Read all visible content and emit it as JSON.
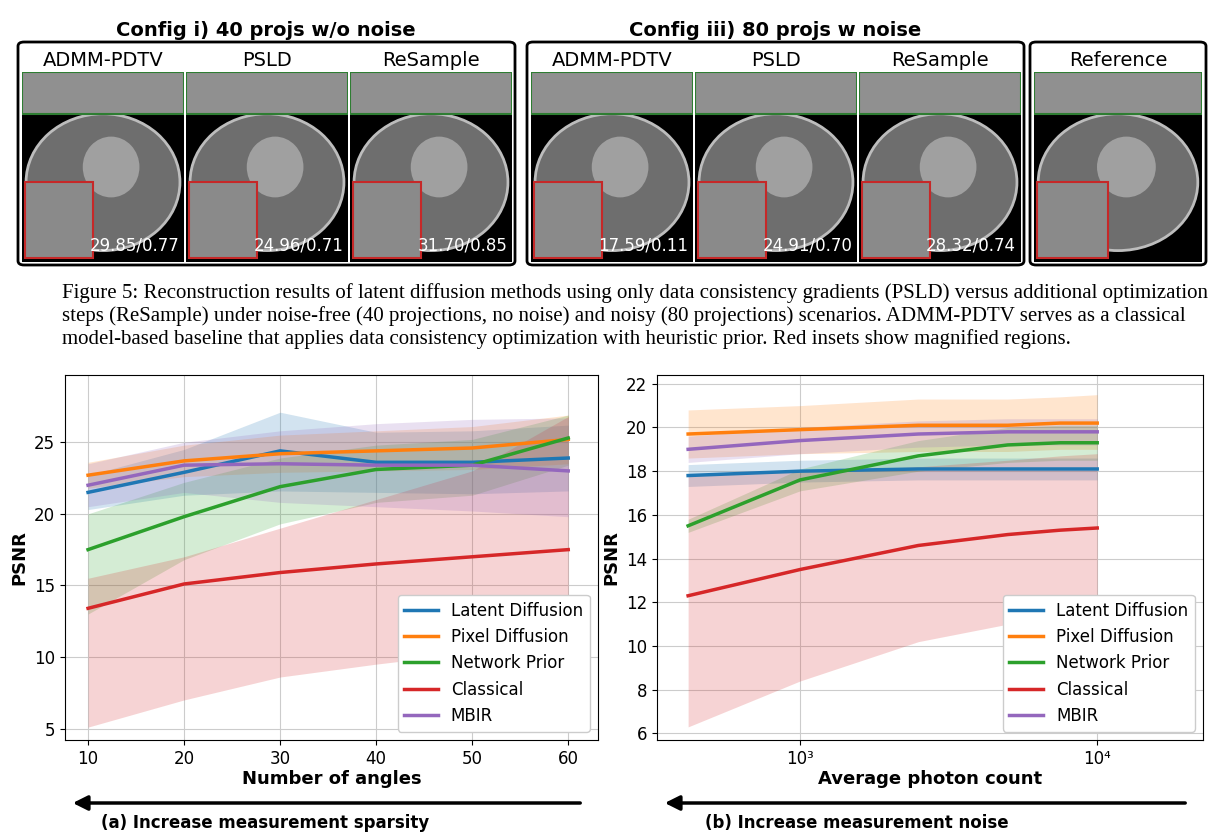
{
  "figure": {
    "groups": [
      {
        "title": "Config i) 40 projs w/o noise",
        "panels": [
          {
            "label": "ADMM-PDTV",
            "metrics": "29.85/0.77"
          },
          {
            "label": "PSLD",
            "metrics": "24.96/0.71"
          },
          {
            "label": "ReSample",
            "metrics": "31.70/0.85"
          }
        ]
      },
      {
        "title": "Config iii) 80 projs w noise",
        "panels": [
          {
            "label": "ADMM-PDTV",
            "metrics": "17.59/0.11"
          },
          {
            "label": "PSLD",
            "metrics": "24.91/0.70"
          },
          {
            "label": "ReSample",
            "metrics": "28.32/0.74"
          }
        ]
      }
    ],
    "reference": "Reference",
    "caption": "Figure 5: Reconstruction results of latent diffusion methods using only data consistency gradients (PSLD) versus additional optimization steps (ReSample) under noise-free (40 projections, no noise) and noisy (80 projections) scenarios. ADMM-PDTV serves as a classical model-based baseline that applies data consistency optimization with heuristic prior. Red insets show magnified regions."
  },
  "chart_data": [
    {
      "type": "line",
      "xlabel": "Number of angles",
      "ylabel": "PSNR",
      "footer": "(a) Increase measurement sparsity",
      "x": [
        10,
        20,
        30,
        40,
        50,
        60
      ],
      "xlim": [
        7.6,
        63.1
      ],
      "ylim": [
        4.2,
        29.7
      ],
      "xticks": [
        10,
        20,
        30,
        40,
        50,
        60
      ],
      "yticks": [
        5,
        10,
        15,
        20,
        25
      ],
      "grid": true,
      "legend": "lower right",
      "series": [
        {
          "name": "Latent Diffusion",
          "color": "#1f77b4",
          "values": [
            21.5,
            22.9,
            24.4,
            23.6,
            23.6,
            23.9
          ],
          "lower": [
            20.3,
            21.3,
            21.6,
            21.5,
            21.4,
            21.6
          ],
          "upper": [
            22.7,
            24.5,
            27.1,
            25.7,
            25.8,
            26.2
          ]
        },
        {
          "name": "Pixel Diffusion",
          "color": "#ff7f0e",
          "values": [
            22.7,
            23.7,
            24.2,
            24.4,
            24.6,
            25.2
          ],
          "lower": [
            21.8,
            22.6,
            22.9,
            23.0,
            23.1,
            23.5
          ],
          "upper": [
            23.6,
            24.8,
            25.5,
            25.8,
            26.1,
            26.9
          ]
        },
        {
          "name": "Network Prior",
          "color": "#2ca02c",
          "values": [
            17.5,
            19.8,
            21.9,
            23.1,
            23.4,
            25.3
          ],
          "lower": [
            13.0,
            16.8,
            19.3,
            20.8,
            21.3,
            23.4
          ],
          "upper": [
            20.0,
            22.2,
            23.9,
            24.8,
            25.2,
            26.9
          ]
        },
        {
          "name": "Classical",
          "color": "#d62728",
          "values": [
            13.4,
            15.1,
            15.9,
            16.5,
            17.0,
            17.5
          ],
          "lower": [
            5.1,
            7.0,
            8.6,
            9.5,
            10.3,
            11.0
          ],
          "upper": [
            15.5,
            17.0,
            19.0,
            21.0,
            23.0,
            26.8
          ]
        },
        {
          "name": "MBIR",
          "color": "#9467bd",
          "values": [
            22.0,
            23.4,
            23.5,
            23.4,
            23.4,
            23.0
          ],
          "lower": [
            20.5,
            21.5,
            20.8,
            20.5,
            20.2,
            19.8
          ],
          "upper": [
            23.5,
            25.0,
            25.8,
            26.3,
            26.6,
            26.7
          ]
        }
      ]
    },
    {
      "type": "line",
      "xlabel": "Average photon count",
      "ylabel": "PSNR",
      "footer": "(b) Increase measurement noise",
      "log": "x",
      "x": [
        420,
        1000,
        2500,
        5000,
        7500,
        10000
      ],
      "xlim": [
        330,
        22700
      ],
      "ylim": [
        5.7,
        22.4
      ],
      "xticks": [
        {
          "value": 1000,
          "label": "10³"
        },
        {
          "value": 10000,
          "label": "10⁴"
        }
      ],
      "yticks": [
        6,
        8,
        10,
        12,
        14,
        16,
        18,
        20,
        22
      ],
      "grid": true,
      "legend": "lower right",
      "series": [
        {
          "name": "Latent Diffusion",
          "color": "#1f77b4",
          "values": [
            17.8,
            18.0,
            18.1,
            18.1,
            18.1,
            18.1
          ],
          "lower": [
            17.3,
            17.5,
            17.6,
            17.6,
            17.6,
            17.6
          ],
          "upper": [
            18.3,
            18.5,
            18.6,
            18.6,
            18.6,
            18.6
          ]
        },
        {
          "name": "Pixel Diffusion",
          "color": "#ff7f0e",
          "values": [
            19.7,
            19.9,
            20.1,
            20.1,
            20.2,
            20.2
          ],
          "lower": [
            18.6,
            18.8,
            18.9,
            18.9,
            19.0,
            19.0
          ],
          "upper": [
            20.8,
            21.0,
            21.3,
            21.3,
            21.4,
            21.5
          ]
        },
        {
          "name": "Network Prior",
          "color": "#2ca02c",
          "values": [
            15.5,
            17.6,
            18.7,
            19.2,
            19.3,
            19.3
          ],
          "lower": [
            15.2,
            17.1,
            18.0,
            18.4,
            18.5,
            18.5
          ],
          "upper": [
            15.8,
            18.1,
            19.4,
            20.0,
            20.1,
            20.1
          ]
        },
        {
          "name": "Classical",
          "color": "#d62728",
          "values": [
            12.3,
            13.5,
            14.6,
            15.1,
            15.3,
            15.4
          ],
          "lower": [
            6.3,
            8.4,
            10.2,
            11.0,
            11.4,
            11.6
          ],
          "upper": [
            17.8,
            18.0,
            18.2,
            18.5,
            18.7,
            18.8
          ]
        },
        {
          "name": "MBIR",
          "color": "#9467bd",
          "values": [
            19.0,
            19.4,
            19.7,
            19.8,
            19.8,
            19.8
          ],
          "lower": [
            18.4,
            18.8,
            19.1,
            19.2,
            19.2,
            19.2
          ],
          "upper": [
            19.6,
            20.0,
            20.3,
            20.4,
            20.4,
            20.4
          ]
        }
      ]
    }
  ]
}
